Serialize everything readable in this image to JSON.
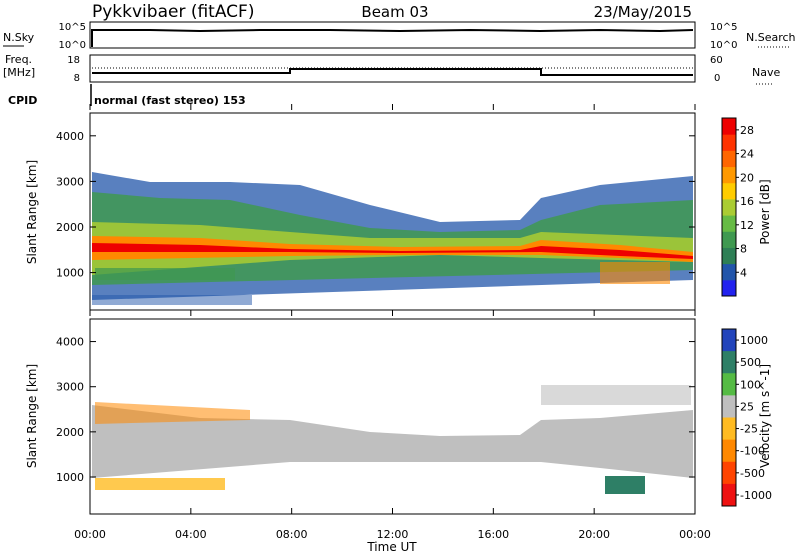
{
  "header": {
    "station": "Pykkvibaer (fitACF)",
    "beam": "Beam 03",
    "date": "23/May/2015"
  },
  "top_panels": {
    "nsky_label": "N.Sky",
    "nsky_ticks": [
      "10^5",
      "10^0"
    ],
    "nsearch_label": "N.Search",
    "nsearch_ticks": [
      "10^5",
      "10^0"
    ],
    "freq_label_1": "Freq.",
    "freq_label_2": "[MHz]",
    "freq_ticks": [
      "18",
      "8"
    ],
    "nave_label": "Nave",
    "nave_ticks": [
      "60",
      "0"
    ],
    "cpid_label": "CPID",
    "cpid_text": "normal (fast stereo) 153"
  },
  "axes": {
    "ylabel": "Slant Range [km]",
    "y_ticks": [
      "1000",
      "2000",
      "3000",
      "4000"
    ],
    "x_ticks": [
      "00:00",
      "04:00",
      "08:00",
      "12:00",
      "16:00",
      "20:00",
      "00:00"
    ],
    "xlabel": "Time UT"
  },
  "power_scale": {
    "label": "Power [dB]",
    "ticks": [
      "4",
      "8",
      "12",
      "16",
      "20",
      "24",
      "28"
    ],
    "colors": [
      "#2222ee",
      "#2255aa",
      "#2e7f55",
      "#3f9950",
      "#66bb44",
      "#aacc33",
      "#ffcc00",
      "#ff9900",
      "#ff6600",
      "#ff3300",
      "#ee0000"
    ]
  },
  "velocity_scale": {
    "label": "Velocity [m s^-1]",
    "ticks": [
      "1000",
      "500",
      "100",
      "25",
      "-25",
      "-100",
      "-500",
      "-1000"
    ],
    "colors": [
      "#2244bb",
      "#2e7f66",
      "#55bb44",
      "#bfbfbf",
      "#ffbb22",
      "#ff8800",
      "#ff4400",
      "#ee1111"
    ]
  },
  "chart_data": [
    {
      "type": "line",
      "title": "N.Sky / N.Search",
      "x": [
        "00:00",
        "08:00",
        "16:00",
        "24:00"
      ],
      "series": [
        {
          "name": "N.Sky",
          "values": [
            100000,
            100000,
            100000,
            100000
          ]
        }
      ]
    },
    {
      "type": "line",
      "title": "Freq. [MHz] / Nave",
      "x": [
        "00:00",
        "08:00",
        "18:00",
        "24:00"
      ],
      "series": [
        {
          "name": "Freq.",
          "values": [
            10,
            12,
            10,
            10
          ]
        }
      ]
    },
    {
      "type": "heatmap",
      "title": "Power [dB]",
      "xlabel": "Time UT",
      "ylabel": "Slant Range [km]",
      "xlim": [
        "00:00",
        "24:00"
      ],
      "ylim": [
        180,
        4500
      ],
      "colorbar": {
        "label": "Power [dB]",
        "range": [
          0,
          30
        ]
      }
    },
    {
      "type": "heatmap",
      "title": "Velocity [m s^-1]",
      "xlabel": "Time UT",
      "ylabel": "Slant Range [km]",
      "xlim": [
        "00:00",
        "24:00"
      ],
      "ylim": [
        180,
        4500
      ],
      "colorbar": {
        "label": "Velocity [m s^-1]",
        "range": [
          -1000,
          1000
        ]
      }
    }
  ]
}
